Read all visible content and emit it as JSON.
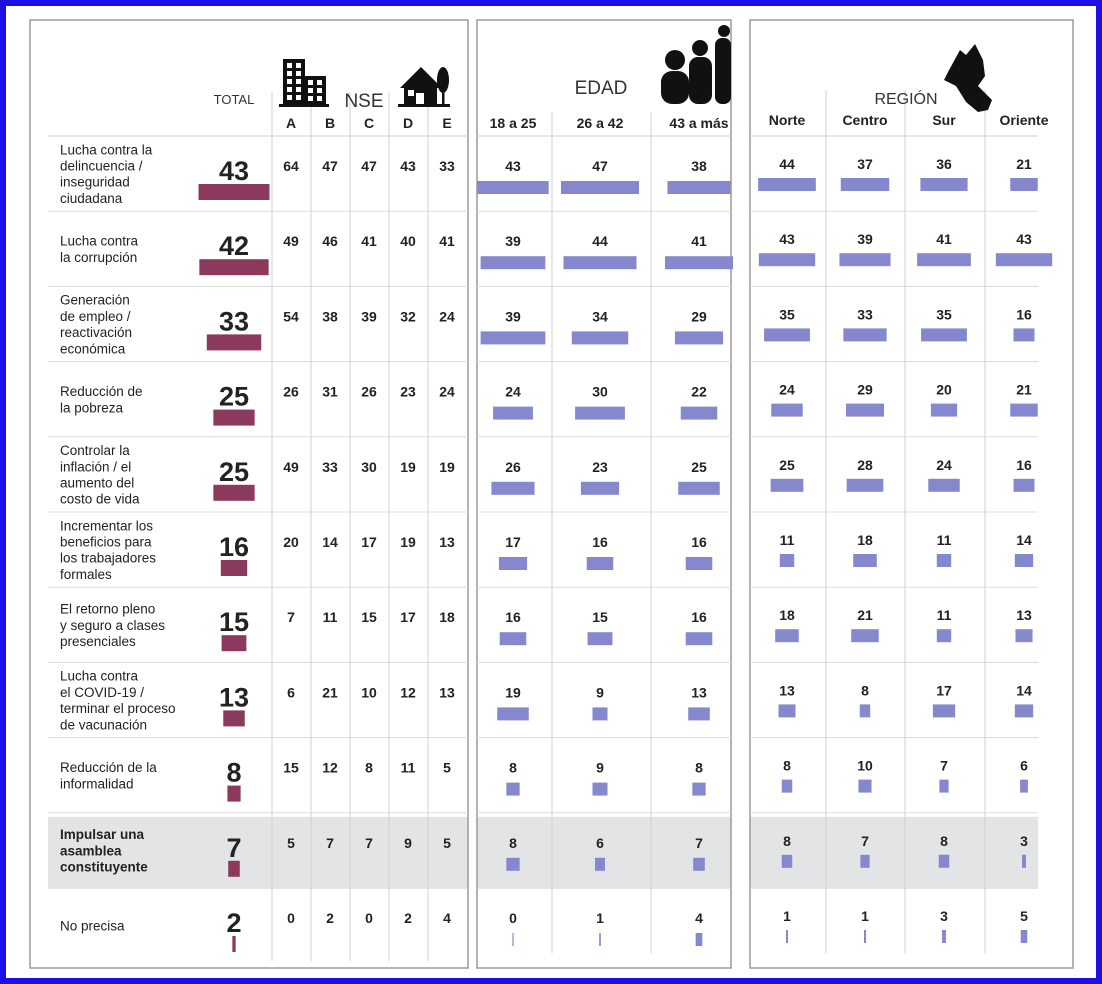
{
  "chart_data": {
    "type": "table",
    "colors": {
      "frame": "#1c10e6",
      "total_bar": "#8b3a5e",
      "segment_bar": "#8588cc",
      "highlight_row": "#e3e4e6",
      "panel_border": "#9a9a9a",
      "text": "#222222"
    },
    "icons": [
      "office-building-icon",
      "house-with-tree-icon",
      "family-group-icon",
      "peru-map-icon"
    ],
    "headers": {
      "total": "TOTAL",
      "nse": "NSE",
      "nse_columns": [
        "A",
        "B",
        "C",
        "D",
        "E"
      ],
      "edad": "EDAD",
      "edad_columns": [
        "18 a 25",
        "26 a 42",
        "43 a más"
      ],
      "region": "REGIÓN",
      "region_columns": [
        "Norte",
        "Centro",
        "Sur",
        "Oriente"
      ]
    },
    "highlight_row_index": 9,
    "rows": [
      {
        "label": [
          "Lucha contra la",
          "delincuencia /",
          "inseguridad",
          "ciudadana"
        ],
        "total": 43,
        "nse": [
          64,
          47,
          47,
          43,
          33
        ],
        "edad": [
          43,
          47,
          38
        ],
        "region": [
          44,
          37,
          36,
          21
        ]
      },
      {
        "label": [
          "Lucha contra",
          "la corrupción"
        ],
        "total": 42,
        "nse": [
          49,
          46,
          41,
          40,
          41
        ],
        "edad": [
          39,
          44,
          41
        ],
        "region": [
          43,
          39,
          41,
          43
        ]
      },
      {
        "label": [
          "Generación",
          "de empleo /",
          "reactivación",
          "económica"
        ],
        "total": 33,
        "nse": [
          54,
          38,
          39,
          32,
          24
        ],
        "edad": [
          39,
          34,
          29
        ],
        "region": [
          35,
          33,
          35,
          16
        ]
      },
      {
        "label": [
          "Reducción de",
          "la pobreza"
        ],
        "total": 25,
        "nse": [
          26,
          31,
          26,
          23,
          24
        ],
        "edad": [
          24,
          30,
          22
        ],
        "region": [
          24,
          29,
          20,
          21
        ]
      },
      {
        "label": [
          "Controlar la",
          "inflación / el",
          "aumento del",
          "costo de vida"
        ],
        "total": 25,
        "nse": [
          49,
          33,
          30,
          19,
          19
        ],
        "edad": [
          26,
          23,
          25
        ],
        "region": [
          25,
          28,
          24,
          16
        ]
      },
      {
        "label": [
          "Incrementar los",
          "beneficios para",
          "los trabajadores",
          "formales"
        ],
        "total": 16,
        "nse": [
          20,
          14,
          17,
          19,
          13
        ],
        "edad": [
          17,
          16,
          16
        ],
        "region": [
          11,
          18,
          11,
          14
        ]
      },
      {
        "label": [
          "El retorno pleno",
          "y seguro a clases",
          "presenciales"
        ],
        "total": 15,
        "nse": [
          7,
          11,
          15,
          17,
          18
        ],
        "edad": [
          16,
          15,
          16
        ],
        "region": [
          18,
          21,
          11,
          13
        ]
      },
      {
        "label": [
          "Lucha contra",
          "el COVID-19 /",
          "terminar el proceso",
          "de vacunación"
        ],
        "total": 13,
        "nse": [
          6,
          21,
          10,
          12,
          13
        ],
        "edad": [
          19,
          9,
          13
        ],
        "region": [
          13,
          8,
          17,
          14
        ]
      },
      {
        "label": [
          "Reducción de la",
          "informalidad"
        ],
        "total": 8,
        "nse": [
          15,
          12,
          8,
          11,
          5
        ],
        "edad": [
          8,
          9,
          8
        ],
        "region": [
          8,
          10,
          7,
          6
        ]
      },
      {
        "label": [
          "Impulsar una",
          "asamblea",
          "constituyente"
        ],
        "total": 7,
        "nse": [
          5,
          7,
          7,
          9,
          5
        ],
        "edad": [
          8,
          6,
          7
        ],
        "region": [
          8,
          7,
          8,
          3
        ]
      },
      {
        "label": [
          "No precisa"
        ],
        "total": 2,
        "nse": [
          0,
          2,
          0,
          2,
          4
        ],
        "edad": [
          0,
          1,
          4
        ],
        "region": [
          1,
          1,
          3,
          5
        ]
      }
    ]
  }
}
